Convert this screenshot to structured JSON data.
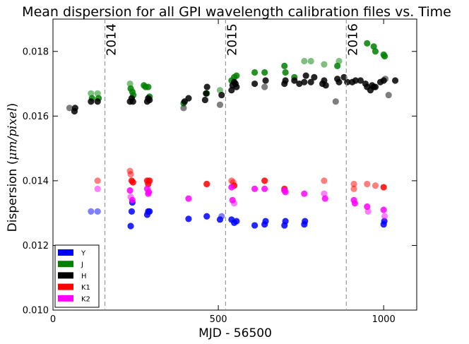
{
  "chart_data": {
    "type": "scatter",
    "title": "Mean dispersion for all GPI wavelength calibration files vs. Time",
    "xlabel": "MJD - 56500",
    "ylabel_prefix": "Dispersion (",
    "ylabel_math": "μm/pixel",
    "ylabel_suffix": ")",
    "xlim": [
      0,
      1100
    ],
    "ylim": [
      0.01,
      0.019
    ],
    "xticks": [
      {
        "value": 0,
        "label": "0"
      },
      {
        "value": 500,
        "label": "500"
      },
      {
        "value": 1000,
        "label": "1000"
      }
    ],
    "yticks": [
      {
        "value": 0.01,
        "label": "0.010"
      },
      {
        "value": 0.012,
        "label": "0.012"
      },
      {
        "value": 0.014,
        "label": "0.014"
      },
      {
        "value": 0.016,
        "label": "0.016"
      },
      {
        "value": 0.018,
        "label": "0.018"
      }
    ],
    "grid": false,
    "legend_position": "lower-left",
    "year_markers": [
      {
        "x": 157,
        "label": "2014"
      },
      {
        "x": 522,
        "label": "2015"
      },
      {
        "x": 887,
        "label": "2016"
      }
    ],
    "series": [
      {
        "name": "Y",
        "color": "#0000ff",
        "points": [
          [
            115,
            0.01305,
            0.5
          ],
          [
            135,
            0.01305,
            0.5
          ],
          [
            235,
            0.0126,
            0.85
          ],
          [
            238,
            0.01305,
            0.85
          ],
          [
            240,
            0.01333,
            0.85
          ],
          [
            285,
            0.01295,
            0.85
          ],
          [
            288,
            0.01305,
            0.85
          ],
          [
            292,
            0.01305,
            0.85
          ],
          [
            410,
            0.01282,
            0.85
          ],
          [
            465,
            0.0129,
            0.85
          ],
          [
            505,
            0.0128,
            0.85
          ],
          [
            510,
            0.0129,
            0.5
          ],
          [
            540,
            0.0128,
            0.85
          ],
          [
            548,
            0.0127,
            0.85
          ],
          [
            555,
            0.01275,
            0.85
          ],
          [
            610,
            0.01262,
            0.85
          ],
          [
            640,
            0.01265,
            0.85
          ],
          [
            643,
            0.01275,
            0.85
          ],
          [
            700,
            0.01262,
            0.85
          ],
          [
            703,
            0.01275,
            0.85
          ],
          [
            760,
            0.01265,
            0.85
          ],
          [
            762,
            0.01275,
            0.85
          ],
          [
            1000,
            0.01265,
            0.85
          ],
          [
            1002,
            0.01275,
            0.85
          ]
        ]
      },
      {
        "name": "J",
        "color": "#008000",
        "points": [
          [
            115,
            0.0167,
            0.5
          ],
          [
            135,
            0.0167,
            0.5
          ],
          [
            118,
            0.01655,
            0.85
          ],
          [
            138,
            0.01655,
            0.85
          ],
          [
            233,
            0.017,
            0.5
          ],
          [
            235,
            0.01685,
            0.85
          ],
          [
            240,
            0.01675,
            0.85
          ],
          [
            243,
            0.01665,
            0.85
          ],
          [
            275,
            0.01695,
            0.85
          ],
          [
            280,
            0.0169,
            0.85
          ],
          [
            288,
            0.0169,
            0.85
          ],
          [
            292,
            0.0166,
            0.85
          ],
          [
            395,
            0.0164,
            0.85
          ],
          [
            465,
            0.0167,
            0.85
          ],
          [
            505,
            0.0168,
            0.5
          ],
          [
            540,
            0.0171,
            0.85
          ],
          [
            548,
            0.0172,
            0.85
          ],
          [
            555,
            0.01725,
            0.85
          ],
          [
            610,
            0.01735,
            0.85
          ],
          [
            640,
            0.01735,
            0.85
          ],
          [
            700,
            0.01755,
            0.85
          ],
          [
            703,
            0.01735,
            0.85
          ],
          [
            730,
            0.0172,
            0.85
          ],
          [
            760,
            0.0177,
            0.5
          ],
          [
            780,
            0.0177,
            0.5
          ],
          [
            820,
            0.0176,
            0.5
          ],
          [
            860,
            0.01755,
            0.85
          ],
          [
            865,
            0.0177,
            0.5
          ],
          [
            950,
            0.01825,
            0.85
          ],
          [
            970,
            0.01815,
            0.85
          ],
          [
            975,
            0.018,
            0.85
          ],
          [
            1000,
            0.0179,
            0.85
          ],
          [
            1003,
            0.01785,
            0.85
          ]
        ]
      },
      {
        "name": "H",
        "color": "#000000",
        "points": [
          [
            50,
            0.01625,
            0.5
          ],
          [
            65,
            0.01615,
            0.85
          ],
          [
            67,
            0.01625,
            0.85
          ],
          [
            115,
            0.01645,
            0.85
          ],
          [
            135,
            0.01645,
            0.85
          ],
          [
            233,
            0.01645,
            0.85
          ],
          [
            238,
            0.01655,
            0.85
          ],
          [
            242,
            0.01645,
            0.85
          ],
          [
            285,
            0.01645,
            0.85
          ],
          [
            288,
            0.01655,
            0.85
          ],
          [
            292,
            0.0165,
            0.85
          ],
          [
            395,
            0.01625,
            0.5
          ],
          [
            398,
            0.01645,
            0.85
          ],
          [
            410,
            0.01655,
            0.85
          ],
          [
            460,
            0.0165,
            0.85
          ],
          [
            463,
            0.0167,
            0.85
          ],
          [
            466,
            0.0169,
            0.85
          ],
          [
            505,
            0.01635,
            0.5
          ],
          [
            510,
            0.01665,
            0.85
          ],
          [
            540,
            0.0168,
            0.85
          ],
          [
            543,
            0.01695,
            0.85
          ],
          [
            548,
            0.01705,
            0.85
          ],
          [
            552,
            0.017,
            0.85
          ],
          [
            555,
            0.0169,
            0.85
          ],
          [
            610,
            0.017,
            0.85
          ],
          [
            640,
            0.0169,
            0.5
          ],
          [
            643,
            0.0171,
            0.85
          ],
          [
            700,
            0.017,
            0.85
          ],
          [
            703,
            0.0171,
            0.85
          ],
          [
            730,
            0.0171,
            0.85
          ],
          [
            745,
            0.017,
            0.85
          ],
          [
            760,
            0.01705,
            0.85
          ],
          [
            765,
            0.01725,
            0.85
          ],
          [
            780,
            0.01705,
            0.85
          ],
          [
            790,
            0.0172,
            0.85
          ],
          [
            815,
            0.017,
            0.85
          ],
          [
            820,
            0.0171,
            0.85
          ],
          [
            825,
            0.01695,
            0.85
          ],
          [
            855,
            0.01645,
            0.5
          ],
          [
            860,
            0.01715,
            0.85
          ],
          [
            865,
            0.01705,
            0.85
          ],
          [
            880,
            0.0172,
            0.85
          ],
          [
            890,
            0.01705,
            0.85
          ],
          [
            905,
            0.01705,
            0.85
          ],
          [
            915,
            0.0171,
            0.85
          ],
          [
            930,
            0.0171,
            0.85
          ],
          [
            945,
            0.017,
            0.85
          ],
          [
            950,
            0.0169,
            0.85
          ],
          [
            960,
            0.0168,
            0.85
          ],
          [
            965,
            0.01695,
            0.85
          ],
          [
            970,
            0.0169,
            0.85
          ],
          [
            975,
            0.0169,
            0.85
          ],
          [
            990,
            0.01705,
            0.85
          ],
          [
            1000,
            0.0171,
            0.85
          ],
          [
            1005,
            0.01715,
            0.5
          ],
          [
            1015,
            0.01665,
            0.5
          ],
          [
            1035,
            0.0171,
            0.85
          ]
        ]
      },
      {
        "name": "K1",
        "color": "#ff0000",
        "points": [
          [
            135,
            0.014,
            0.5
          ],
          [
            233,
            0.0143,
            0.5
          ],
          [
            235,
            0.0142,
            0.5
          ],
          [
            238,
            0.014,
            0.85
          ],
          [
            242,
            0.01395,
            0.85
          ],
          [
            285,
            0.014,
            0.85
          ],
          [
            288,
            0.0139,
            0.85
          ],
          [
            292,
            0.014,
            0.85
          ],
          [
            465,
            0.0139,
            0.85
          ],
          [
            540,
            0.014,
            0.5
          ],
          [
            545,
            0.01395,
            0.5
          ],
          [
            548,
            0.01385,
            0.85
          ],
          [
            640,
            0.014,
            0.85
          ],
          [
            700,
            0.01375,
            0.85
          ],
          [
            820,
            0.014,
            0.5
          ],
          [
            910,
            0.0139,
            0.5
          ],
          [
            910,
            0.01375,
            0.5
          ],
          [
            950,
            0.0139,
            0.5
          ],
          [
            975,
            0.01385,
            0.5
          ],
          [
            1000,
            0.0138,
            0.85
          ]
        ]
      },
      {
        "name": "K2",
        "color": "#ff00ff",
        "points": [
          [
            135,
            0.01375,
            0.5
          ],
          [
            233,
            0.0137,
            0.85
          ],
          [
            235,
            0.0135,
            0.5
          ],
          [
            240,
            0.0134,
            0.85
          ],
          [
            285,
            0.01375,
            0.85
          ],
          [
            288,
            0.0136,
            0.85
          ],
          [
            290,
            0.01365,
            0.85
          ],
          [
            410,
            0.01345,
            0.85
          ],
          [
            540,
            0.0138,
            0.85
          ],
          [
            543,
            0.0134,
            0.85
          ],
          [
            548,
            0.0133,
            0.5
          ],
          [
            610,
            0.01375,
            0.85
          ],
          [
            640,
            0.01375,
            0.85
          ],
          [
            700,
            0.0137,
            0.85
          ],
          [
            703,
            0.01365,
            0.85
          ],
          [
            760,
            0.0136,
            0.85
          ],
          [
            820,
            0.0136,
            0.5
          ],
          [
            823,
            0.01345,
            0.85
          ],
          [
            910,
            0.0134,
            0.85
          ],
          [
            913,
            0.0133,
            0.85
          ],
          [
            950,
            0.0132,
            0.85
          ],
          [
            953,
            0.01305,
            0.5
          ],
          [
            1000,
            0.0131,
            0.85
          ],
          [
            1003,
            0.0129,
            0.5
          ]
        ]
      }
    ]
  }
}
